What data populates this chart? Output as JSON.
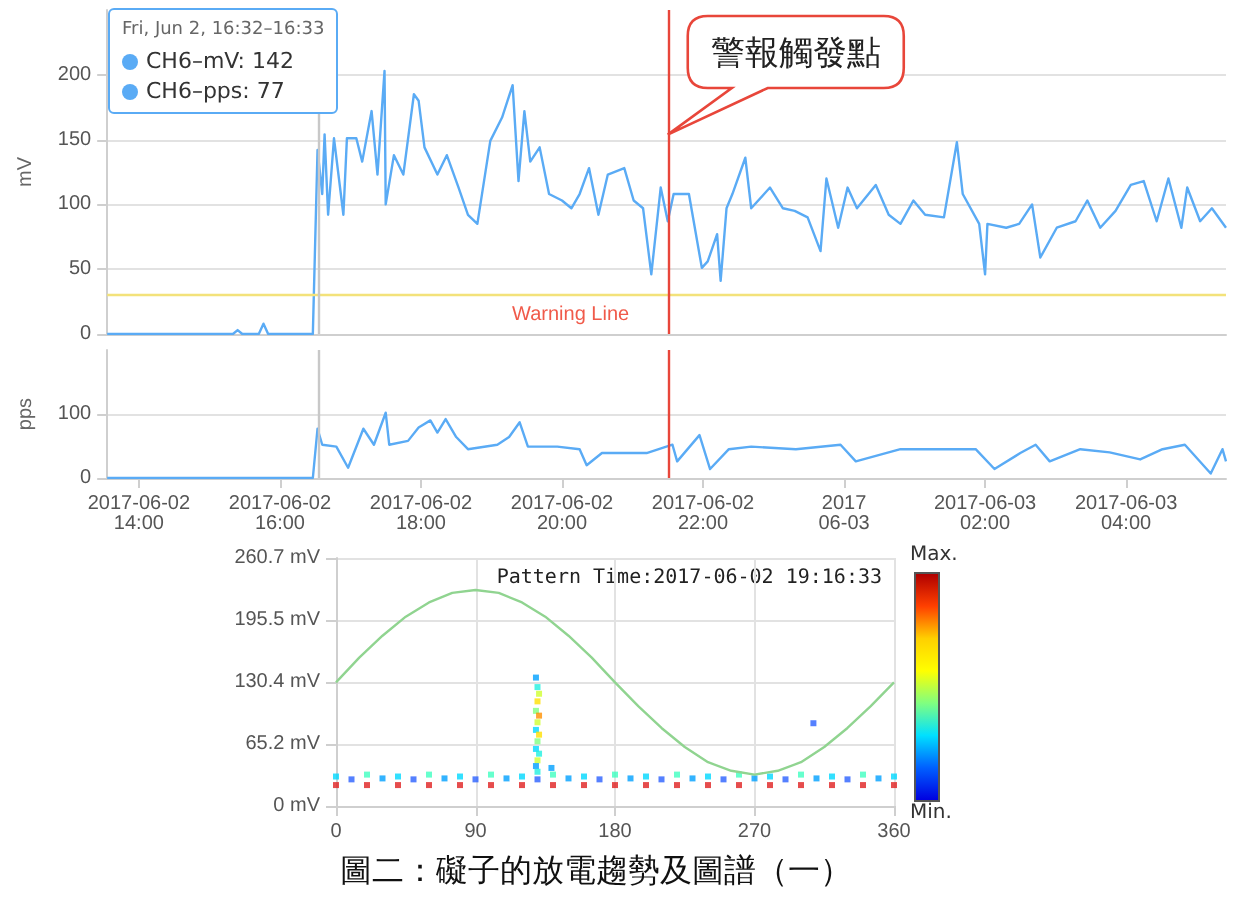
{
  "chart_data": [
    {
      "type": "line",
      "ylabel": "mV",
      "xlim": [
        "2017-06-02T13:33",
        "2017-06-03T05:25"
      ],
      "ylim": [
        0,
        250
      ],
      "yticks": [
        0,
        50,
        100,
        150,
        200
      ],
      "grid": "y",
      "marker": "none",
      "tick_labels": "y",
      "series": [
        {
          "color": "#5aabf5",
          "x": [
            "2017-06-02T13:33",
            "2017-06-02T15:20",
            "2017-06-02T15:24",
            "2017-06-02T15:28",
            "2017-06-02T15:42",
            "2017-06-02T15:46",
            "2017-06-02T15:50",
            "2017-06-02T16:28",
            "2017-06-02T16:32",
            "2017-06-02T16:36",
            "2017-06-02T16:38",
            "2017-06-02T16:41",
            "2017-06-02T16:46",
            "2017-06-02T16:54",
            "2017-06-02T16:57",
            "2017-06-02T17:05",
            "2017-06-02T17:10",
            "2017-06-02T17:18",
            "2017-06-02T17:23",
            "2017-06-02T17:29",
            "2017-06-02T17:30",
            "2017-06-02T17:37",
            "2017-06-02T17:45",
            "2017-06-02T17:54",
            "2017-06-02T17:58",
            "2017-06-02T18:03",
            "2017-06-02T18:14",
            "2017-06-02T18:22",
            "2017-06-02T18:32",
            "2017-06-02T18:40",
            "2017-06-02T18:48",
            "2017-06-02T18:59",
            "2017-06-02T19:09",
            "2017-06-02T19:18",
            "2017-06-02T19:23",
            "2017-06-02T19:28",
            "2017-06-02T19:33",
            "2017-06-02T19:41",
            "2017-06-02T19:49",
            "2017-06-02T20:00",
            "2017-06-02T20:08",
            "2017-06-02T20:15",
            "2017-06-02T20:23",
            "2017-06-02T20:31",
            "2017-06-02T20:39",
            "2017-06-02T20:53",
            "2017-06-02T21:01",
            "2017-06-02T21:09",
            "2017-06-02T21:16",
            "2017-06-02T21:24",
            "2017-06-02T21:30",
            "2017-06-02T21:35",
            "2017-06-02T21:48",
            "2017-06-02T21:59",
            "2017-06-02T22:04",
            "2017-06-02T22:12",
            "2017-06-02T22:15",
            "2017-06-02T22:20",
            "2017-06-02T22:25",
            "2017-06-02T22:36",
            "2017-06-02T22:41",
            "2017-06-02T22:52",
            "2017-06-02T22:57",
            "2017-06-02T23:08",
            "2017-06-02T23:18",
            "2017-06-02T23:29",
            "2017-06-02T23:40",
            "2017-06-02T23:45",
            "2017-06-02T23:55",
            "2017-06-03T00:03",
            "2017-06-03T00:11",
            "2017-06-03T00:27",
            "2017-06-03T00:38",
            "2017-06-03T00:48",
            "2017-06-03T00:59",
            "2017-06-03T01:09",
            "2017-06-03T01:25",
            "2017-06-03T01:36",
            "2017-06-03T01:41",
            "2017-06-03T01:55",
            "2017-06-03T02:00",
            "2017-06-03T02:02",
            "2017-06-03T02:18",
            "2017-06-03T02:29",
            "2017-06-03T02:40",
            "2017-06-03T02:47",
            "2017-06-03T03:01",
            "2017-06-03T03:17",
            "2017-06-03T03:27",
            "2017-06-03T03:38",
            "2017-06-03T03:51",
            "2017-06-03T04:04",
            "2017-06-03T04:15",
            "2017-06-03T04:26",
            "2017-06-03T04:36",
            "2017-06-03T04:47",
            "2017-06-03T04:52",
            "2017-06-03T05:03",
            "2017-06-03T05:13",
            "2017-06-03T05:25"
          ],
          "values": [
            0,
            0,
            3,
            0,
            0,
            8,
            0,
            0,
            142,
            108,
            154,
            92,
            151,
            92,
            151,
            151,
            133,
            172,
            123,
            203,
            100,
            138,
            123,
            185,
            180,
            144,
            123,
            138,
            113,
            92,
            85,
            149,
            167,
            192,
            118,
            172,
            133,
            144,
            108,
            103,
            97,
            108,
            128,
            92,
            123,
            128,
            103,
            97,
            46,
            113,
            87,
            108,
            108,
            51,
            56,
            77,
            41,
            97,
            108,
            136,
            97,
            108,
            113,
            97,
            95,
            90,
            64,
            120,
            82,
            113,
            97,
            115,
            92,
            85,
            103,
            92,
            90,
            148,
            108,
            85,
            46,
            85,
            82,
            85,
            100,
            59,
            82,
            87,
            103,
            82,
            95,
            115,
            118,
            87,
            120,
            82,
            113,
            87,
            97,
            82
          ]
        }
      ],
      "ref_lines": [
        {
          "axis": "y",
          "value": 30,
          "label": "Warning Line",
          "color": "#f3e27a"
        },
        {
          "axis": "x",
          "value": "2017-06-02T21:30",
          "label": "警報觸發點",
          "color": "#e8463a"
        },
        {
          "axis": "x",
          "value": "2017-06-02T16:32",
          "color": "#c8c8c8"
        }
      ],
      "annotations": [
        "Fri, Jun 2, 16:32–16:33",
        "CH6–mV: 142",
        "CH6–pps: 77"
      ]
    },
    {
      "type": "line",
      "ylabel": "pps",
      "xlim": [
        "2017-06-02T13:33",
        "2017-06-03T05:25"
      ],
      "xticks": [
        {
          "value": "2017-06-02T14:00",
          "label": "2017-06-02\n14:00"
        },
        {
          "value": "2017-06-02T16:00",
          "label": "2017-06-02\n16:00"
        },
        {
          "value": "2017-06-02T18:00",
          "label": "2017-06-02\n18:00"
        },
        {
          "value": "2017-06-02T20:00",
          "label": "2017-06-02\n20:00"
        },
        {
          "value": "2017-06-02T22:00",
          "label": "2017-06-02\n22:00"
        },
        {
          "value": "2017-06-03T00:00",
          "label": "2017\n06-03"
        },
        {
          "value": "2017-06-03T02:00",
          "label": "2017-06-03\n02:00"
        },
        {
          "value": "2017-06-03T04:00",
          "label": "2017-06-03\n04:00"
        }
      ],
      "ylim": [
        0,
        200
      ],
      "yticks": [
        0,
        100
      ],
      "grid": "y",
      "marker": "none",
      "series": [
        {
          "color": "#5aabf5",
          "x": [
            "2017-06-02T13:33",
            "2017-06-02T16:28",
            "2017-06-02T16:32",
            "2017-06-02T16:36",
            "2017-06-02T16:48",
            "2017-06-02T16:58",
            "2017-06-02T17:11",
            "2017-06-02T17:20",
            "2017-06-02T17:30",
            "2017-06-02T17:33",
            "2017-06-02T17:49",
            "2017-06-02T17:58",
            "2017-06-02T18:08",
            "2017-06-02T18:14",
            "2017-06-02T18:21",
            "2017-06-02T18:30",
            "2017-06-02T18:40",
            "2017-06-02T19:05",
            "2017-06-02T19:15",
            "2017-06-02T19:24",
            "2017-06-02T19:31",
            "2017-06-02T19:56",
            "2017-06-02T20:15",
            "2017-06-02T20:21",
            "2017-06-02T20:34",
            "2017-06-02T21:12",
            "2017-06-02T21:34",
            "2017-06-02T21:38",
            "2017-06-02T21:57",
            "2017-06-02T22:06",
            "2017-06-02T22:22",
            "2017-06-02T22:41",
            "2017-06-02T23:19",
            "2017-06-02T23:57",
            "2017-06-03T00:10",
            "2017-06-03T00:48",
            "2017-06-03T01:20",
            "2017-06-03T01:52",
            "2017-06-03T02:08",
            "2017-06-03T02:30",
            "2017-06-03T02:43",
            "2017-06-03T02:55",
            "2017-06-03T03:21",
            "2017-06-03T03:46",
            "2017-06-03T04:12",
            "2017-06-03T04:31",
            "2017-06-03T04:50",
            "2017-06-03T05:12",
            "2017-06-03T05:22",
            "2017-06-03T05:25"
          ],
          "values": [
            0,
            0,
            77,
            52,
            49,
            16,
            77,
            52,
            102,
            52,
            58,
            79,
            90,
            71,
            92,
            64,
            45,
            52,
            64,
            87,
            49,
            49,
            45,
            20,
            39,
            39,
            52,
            26,
            67,
            14,
            45,
            49,
            45,
            52,
            26,
            45,
            45,
            45,
            14,
            39,
            52,
            26,
            45,
            40,
            29,
            45,
            52,
            7,
            45,
            26
          ]
        }
      ],
      "ref_lines": [
        {
          "axis": "x",
          "value": "2017-06-02T21:30",
          "color": "#e8463a"
        },
        {
          "axis": "x",
          "value": "2017-06-02T16:32",
          "color": "#c8c8c8"
        }
      ]
    },
    {
      "type": "scatter",
      "xlim": [
        0,
        360
      ],
      "xticks": [
        0,
        90,
        180,
        270,
        360
      ],
      "ylim": [
        0,
        260.7
      ],
      "yticks": [
        {
          "value": 0,
          "label": "0 mV"
        },
        {
          "value": 65.2,
          "label": "65.2 mV"
        },
        {
          "value": 130.4,
          "label": "130.4 mV"
        },
        {
          "value": 195.5,
          "label": "195.5 mV"
        },
        {
          "value": 260.7,
          "label": "260.7 mV"
        }
      ],
      "grid": true,
      "marker": "square",
      "series": [
        {
          "type": "scatter",
          "x": [
            0,
            10,
            20,
            30,
            40,
            50,
            60,
            70,
            80,
            90,
            100,
            110,
            120,
            130,
            140,
            150,
            160,
            170,
            180,
            190,
            200,
            210,
            220,
            230,
            240,
            250,
            260,
            270,
            280,
            290,
            300,
            310,
            320,
            330,
            340,
            350,
            360,
            0,
            20,
            40,
            60,
            80,
            100,
            120,
            140,
            160,
            180,
            200,
            220,
            240,
            260,
            280,
            300,
            320,
            340,
            360,
            129,
            130,
            131,
            130,
            129,
            131,
            130,
            129,
            131,
            130,
            129,
            131,
            130,
            129,
            130,
            139,
            308
          ],
          "values": [
            31,
            28,
            33,
            29,
            31,
            28,
            33,
            29,
            31,
            28,
            33,
            29,
            31,
            28,
            33,
            29,
            31,
            28,
            33,
            29,
            31,
            28,
            33,
            29,
            31,
            28,
            33,
            29,
            31,
            28,
            33,
            29,
            31,
            28,
            33,
            29,
            31,
            22,
            22,
            22,
            22,
            22,
            22,
            22,
            22,
            22,
            22,
            22,
            22,
            22,
            22,
            22,
            22,
            22,
            22,
            22,
            135,
            125,
            118,
            110,
            100,
            95,
            88,
            80,
            75,
            68,
            60,
            55,
            48,
            42,
            36,
            40,
            87
          ],
          "colors": [
            "#00d8ff",
            "#2a60ff",
            "#40ffc0",
            "#00a0ff",
            "#00d8ff",
            "#2a60ff",
            "#40ffc0",
            "#00a0ff",
            "#00d8ff",
            "#2a60ff",
            "#40ffc0",
            "#00a0ff",
            "#00d8ff",
            "#2a60ff",
            "#40ffc0",
            "#00a0ff",
            "#00d8ff",
            "#2a60ff",
            "#40ffc0",
            "#00a0ff",
            "#00d8ff",
            "#2a60ff",
            "#40ffc0",
            "#00a0ff",
            "#00d8ff",
            "#2a60ff",
            "#40ffc0",
            "#00a0ff",
            "#00d8ff",
            "#2a60ff",
            "#40ffc0",
            "#00a0ff",
            "#00d8ff",
            "#2a60ff",
            "#40ffc0",
            "#00a0ff",
            "#00d8ff",
            "#e02020",
            "#e02020",
            "#e02020",
            "#e02020",
            "#e02020",
            "#e02020",
            "#e02020",
            "#e02020",
            "#e02020",
            "#e02020",
            "#e02020",
            "#e02020",
            "#e02020",
            "#e02020",
            "#e02020",
            "#e02020",
            "#e02020",
            "#e02020",
            "#e02020",
            "#00a0ff",
            "#20f0e0",
            "#d0ff30",
            "#ffe000",
            "#80ff80",
            "#ff9000",
            "#d0ff30",
            "#00d8ff",
            "#ffe000",
            "#80ff80",
            "#00d8ff",
            "#20f0e0",
            "#d0ff30",
            "#00a0ff",
            "#20f0e0",
            "#00a0ff",
            "#2a60ff"
          ]
        },
        {
          "type": "line",
          "color": "#90d490",
          "marker": "none",
          "x": [
            0,
            15,
            30,
            45,
            60,
            75,
            90,
            105,
            120,
            135,
            150,
            165,
            180,
            195,
            210,
            225,
            240,
            255,
            270,
            285,
            300,
            315,
            330,
            345,
            360
          ],
          "values": [
            130,
            156,
            179,
            199,
            214,
            224,
            227,
            224,
            214,
            199,
            179,
            156,
            130,
            105,
            82,
            62,
            46,
            37,
            33,
            37,
            46,
            62,
            82,
            105,
            130
          ]
        }
      ],
      "annotations": [
        "Pattern Time:2017-06-02 19:16:33",
        "圖二：礙子的放電趨勢及圖譜（一）",
        "Max.",
        "Min."
      ]
    }
  ]
}
